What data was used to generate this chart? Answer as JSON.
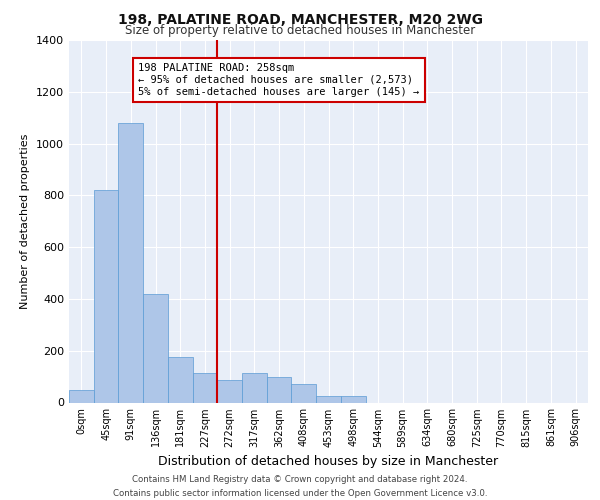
{
  "title1": "198, PALATINE ROAD, MANCHESTER, M20 2WG",
  "title2": "Size of property relative to detached houses in Manchester",
  "xlabel": "Distribution of detached houses by size in Manchester",
  "ylabel": "Number of detached properties",
  "bin_labels": [
    "0sqm",
    "45sqm",
    "91sqm",
    "136sqm",
    "181sqm",
    "227sqm",
    "272sqm",
    "317sqm",
    "362sqm",
    "408sqm",
    "453sqm",
    "498sqm",
    "544sqm",
    "589sqm",
    "634sqm",
    "680sqm",
    "725sqm",
    "770sqm",
    "815sqm",
    "861sqm",
    "906sqm"
  ],
  "bar_heights": [
    50,
    820,
    1080,
    420,
    175,
    115,
    85,
    115,
    100,
    70,
    25,
    25,
    0,
    0,
    0,
    0,
    0,
    0,
    0,
    0,
    0
  ],
  "bar_color": "#aec6e8",
  "bar_edge_color": "#5a9bd5",
  "vline_x": 6.0,
  "vline_color": "#cc0000",
  "annotation_text": "198 PALATINE ROAD: 258sqm\n← 95% of detached houses are smaller (2,573)\n5% of semi-detached houses are larger (145) →",
  "annotation_box_color": "#ffffff",
  "annotation_box_edge": "#cc0000",
  "ylim": [
    0,
    1400
  ],
  "yticks": [
    0,
    200,
    400,
    600,
    800,
    1000,
    1200,
    1400
  ],
  "bg_color": "#e8eef8",
  "grid_color": "#ffffff",
  "footer": "Contains HM Land Registry data © Crown copyright and database right 2024.\nContains public sector information licensed under the Open Government Licence v3.0."
}
